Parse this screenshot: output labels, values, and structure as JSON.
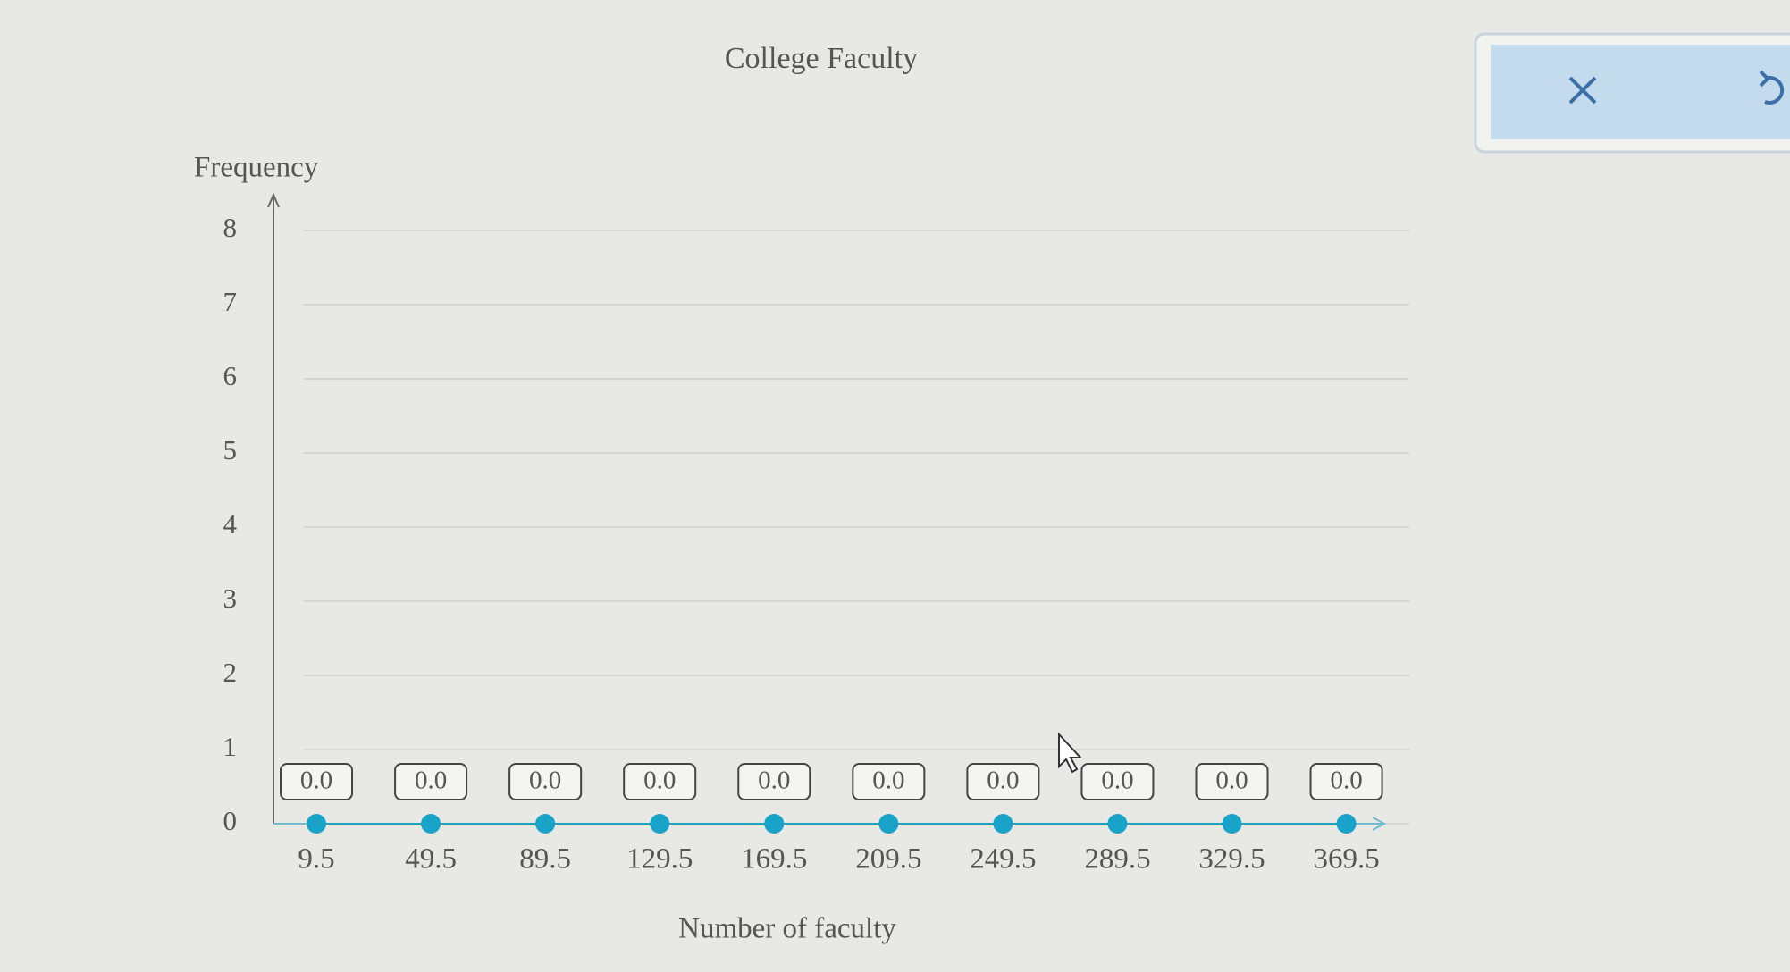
{
  "chart_data": {
    "type": "line",
    "title": "College Faculty",
    "y_label": "Frequency",
    "x_label": "Number of faculty",
    "x": [
      9.5,
      49.5,
      89.5,
      129.5,
      169.5,
      209.5,
      249.5,
      289.5,
      329.5,
      369.5
    ],
    "values": [
      0,
      0,
      0,
      0,
      0,
      0,
      0,
      0,
      0,
      0
    ],
    "value_labels": [
      "0.0",
      "0.0",
      "0.0",
      "0.0",
      "0.0",
      "0.0",
      "0.0",
      "0.0",
      "0.0",
      "0.0"
    ],
    "color": "#1aa3c8",
    "xlim": [
      -5.5,
      391.5
    ],
    "ylim": [
      0,
      8
    ],
    "yticks": [
      0,
      1,
      2,
      3,
      4,
      5,
      6,
      7,
      8
    ],
    "grid": true
  }
}
